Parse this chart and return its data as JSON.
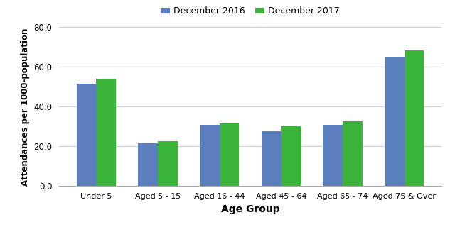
{
  "categories": [
    "Under 5",
    "Aged 5 - 15",
    "Aged 16 - 44",
    "Aged 45 - 64",
    "Aged 65 - 74",
    "Aged 75 & Over"
  ],
  "dec2016": [
    51.5,
    21.5,
    30.8,
    27.5,
    30.8,
    65.0
  ],
  "dec2017": [
    54.0,
    22.5,
    31.5,
    30.0,
    32.5,
    68.5
  ],
  "color_2016": "#5b7fbd",
  "color_2017": "#3ab53a",
  "legend_2016": "December 2016",
  "legend_2017": "December 2017",
  "xlabel": "Age Group",
  "ylabel": "Attendances per 1000-population",
  "ylim": [
    0.0,
    80.0
  ],
  "yticks": [
    0.0,
    20.0,
    40.0,
    60.0,
    80.0
  ],
  "bar_width": 0.32,
  "background_color": "#ffffff",
  "grid_color": "#d0d0d0"
}
